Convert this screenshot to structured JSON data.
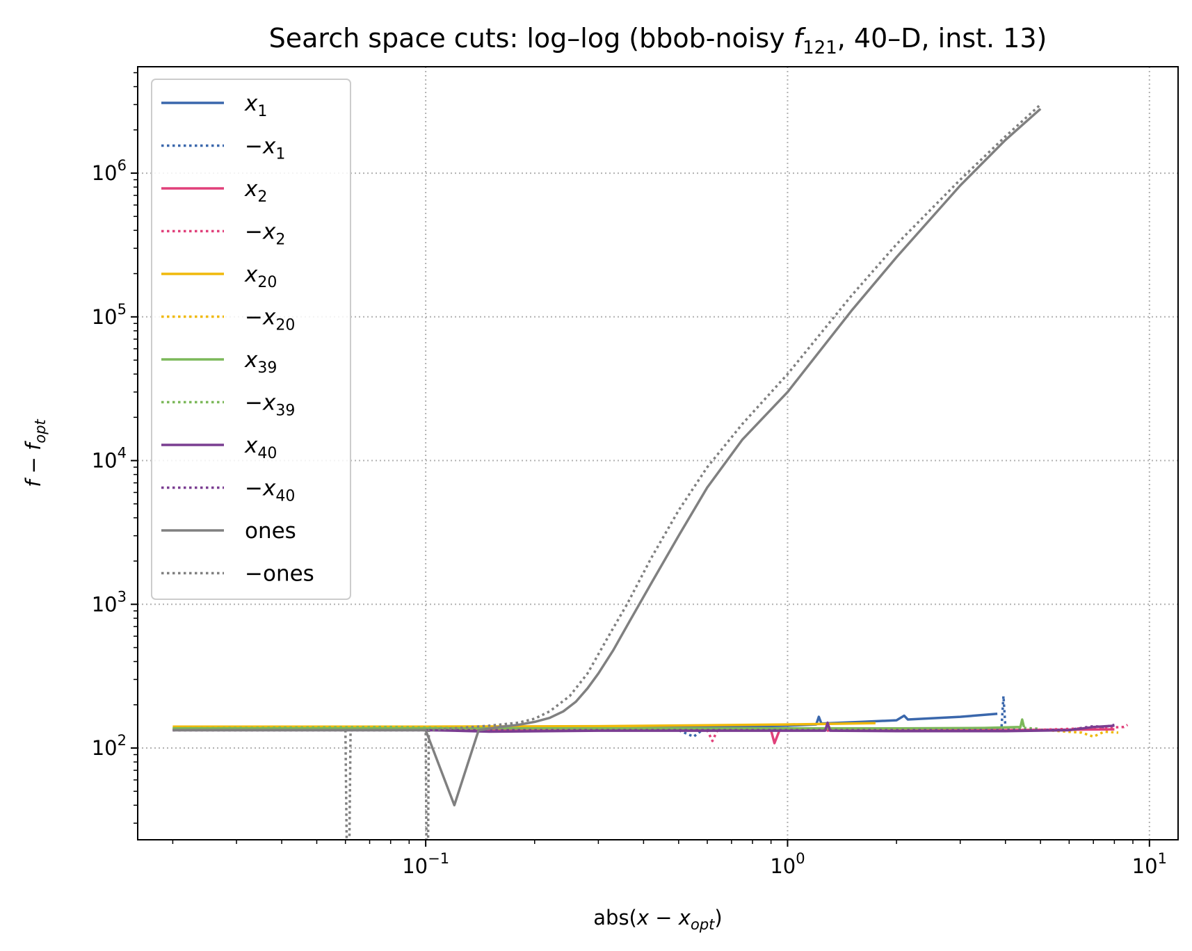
{
  "chart_data": {
    "type": "line",
    "title": {
      "pre": "Search space cuts: log–log (bbob-noisy ",
      "fvar": "f",
      "fsub": "121",
      "post": ", 40–D, inst. 13)"
    },
    "xlabel": {
      "pre": "abs(",
      "var": "x",
      "op": " − ",
      "var2": "x",
      "sub": "opt",
      "post": ")"
    },
    "ylabel": {
      "var": "f",
      "op": " − ",
      "var2": "f",
      "sub": "opt"
    },
    "x_scale": "log",
    "y_scale": "log",
    "xlim": [
      0.016,
      12.0
    ],
    "ylim": [
      23.0,
      5500000.0
    ],
    "x_ticks": [
      {
        "value": 0.1,
        "base": "10",
        "exp": "−1"
      },
      {
        "value": 1,
        "base": "10",
        "exp": "0"
      },
      {
        "value": 10,
        "base": "10",
        "exp": "1"
      }
    ],
    "y_ticks": [
      {
        "value": 100,
        "base": "10",
        "exp": "2"
      },
      {
        "value": 1000,
        "base": "10",
        "exp": "3"
      },
      {
        "value": 10000,
        "base": "10",
        "exp": "4"
      },
      {
        "value": 100000,
        "base": "10",
        "exp": "5"
      },
      {
        "value": 1000000,
        "base": "10",
        "exp": "6"
      }
    ],
    "grid": true,
    "legend_position": "top-left",
    "series": [
      {
        "name": "x",
        "sign": "",
        "sub": "1",
        "color": "#3a67ac",
        "dash": "solid",
        "points": [
          [
            0.02,
            135
          ],
          [
            0.05,
            135
          ],
          [
            0.1,
            135
          ],
          [
            0.3,
            137
          ],
          [
            0.6,
            140
          ],
          [
            1.0,
            143
          ],
          [
            1.2,
            146
          ],
          [
            1.22,
            165
          ],
          [
            1.24,
            148
          ],
          [
            1.6,
            152
          ],
          [
            2.0,
            156
          ],
          [
            2.1,
            168
          ],
          [
            2.15,
            158
          ],
          [
            3.0,
            165
          ],
          [
            3.8,
            173
          ]
        ]
      },
      {
        "name": "x",
        "sign": "−",
        "sub": "1",
        "color": "#3a67ac",
        "dash": "dotted",
        "points": [
          [
            0.02,
            134
          ],
          [
            0.1,
            134
          ],
          [
            0.5,
            133
          ],
          [
            0.55,
            120
          ],
          [
            0.58,
            133
          ],
          [
            1.0,
            134
          ],
          [
            2.0,
            135
          ],
          [
            3.9,
            136
          ],
          [
            3.95,
            230
          ],
          [
            4.0,
            140
          ]
        ]
      },
      {
        "name": "x",
        "sign": "",
        "sub": "2",
        "color": "#e0407a",
        "dash": "solid",
        "points": [
          [
            0.02,
            134
          ],
          [
            0.1,
            134
          ],
          [
            0.5,
            133
          ],
          [
            0.9,
            133
          ],
          [
            0.92,
            108
          ],
          [
            0.95,
            133
          ],
          [
            1.27,
            133
          ],
          [
            1.29,
            145
          ],
          [
            1.32,
            133
          ],
          [
            2.0,
            132
          ],
          [
            4.0,
            133
          ],
          [
            8.0,
            135
          ]
        ]
      },
      {
        "name": "x",
        "sign": "−",
        "sub": "2",
        "color": "#e0407a",
        "dash": "dotted",
        "points": [
          [
            0.02,
            134
          ],
          [
            0.1,
            134
          ],
          [
            0.6,
            133
          ],
          [
            0.62,
            112
          ],
          [
            0.64,
            133
          ],
          [
            2.0,
            132
          ],
          [
            5.0,
            134
          ],
          [
            8.5,
            140
          ],
          [
            8.7,
            145
          ]
        ]
      },
      {
        "name": "x",
        "sign": "",
        "sub": "20",
        "color": "#f0b90b",
        "dash": "solid",
        "points": [
          [
            0.02,
            141
          ],
          [
            0.05,
            141
          ],
          [
            0.1,
            141
          ],
          [
            0.3,
            142
          ],
          [
            0.6,
            144
          ],
          [
            1.0,
            146
          ],
          [
            1.5,
            148
          ],
          [
            1.75,
            149
          ]
        ]
      },
      {
        "name": "x",
        "sign": "−",
        "sub": "20",
        "color": "#f0b90b",
        "dash": "dotted",
        "points": [
          [
            0.02,
            138
          ],
          [
            0.1,
            138
          ],
          [
            0.5,
            137
          ],
          [
            1.0,
            136
          ],
          [
            3.0,
            135
          ],
          [
            5.0,
            134
          ],
          [
            6.5,
            128
          ],
          [
            7.0,
            120
          ],
          [
            7.5,
            130
          ],
          [
            8.2,
            128
          ]
        ]
      },
      {
        "name": "x",
        "sign": "",
        "sub": "39",
        "color": "#7cb85a",
        "dash": "solid",
        "points": [
          [
            0.02,
            137
          ],
          [
            0.1,
            137
          ],
          [
            0.5,
            137
          ],
          [
            1.0,
            137
          ],
          [
            2.0,
            137
          ],
          [
            3.5,
            138
          ],
          [
            4.4,
            140
          ],
          [
            4.45,
            158
          ],
          [
            4.5,
            140
          ]
        ]
      },
      {
        "name": "x",
        "sign": "−",
        "sub": "39",
        "color": "#7cb85a",
        "dash": "dotted",
        "points": [
          [
            0.02,
            137
          ],
          [
            0.08,
            140
          ],
          [
            0.15,
            136
          ],
          [
            0.3,
            136
          ],
          [
            0.45,
            133
          ],
          [
            1.0,
            134
          ],
          [
            2.0,
            136
          ],
          [
            4.5,
            138
          ],
          [
            5.0,
            136
          ]
        ]
      },
      {
        "name": "x",
        "sign": "",
        "sub": "40",
        "color": "#7a3d91",
        "dash": "solid",
        "points": [
          [
            0.02,
            133
          ],
          [
            0.05,
            133
          ],
          [
            0.1,
            133
          ],
          [
            0.12,
            132
          ],
          [
            0.15,
            130
          ],
          [
            0.3,
            132
          ],
          [
            1.0,
            132
          ],
          [
            1.27,
            132
          ],
          [
            1.29,
            150
          ],
          [
            1.31,
            132
          ],
          [
            2.0,
            131
          ],
          [
            4.0,
            131
          ],
          [
            6.0,
            133
          ],
          [
            7.0,
            140
          ],
          [
            8.0,
            143
          ]
        ]
      },
      {
        "name": "x",
        "sign": "−",
        "sub": "40",
        "color": "#7a3d91",
        "dash": "dotted",
        "points": [
          [
            0.02,
            133
          ],
          [
            0.1,
            133
          ],
          [
            0.5,
            133
          ],
          [
            1.0,
            133
          ],
          [
            3.0,
            133
          ],
          [
            6.0,
            134
          ],
          [
            7.0,
            142
          ],
          [
            7.5,
            140
          ],
          [
            8.0,
            145
          ]
        ]
      },
      {
        "name": "ones",
        "sign": "",
        "sub": "",
        "color": "#808080",
        "dash": "solid",
        "points": [
          [
            0.02,
            133
          ],
          [
            0.05,
            133
          ],
          [
            0.1,
            133
          ],
          [
            0.12,
            40
          ],
          [
            0.14,
            133
          ],
          [
            0.16,
            140
          ],
          [
            0.18,
            145
          ],
          [
            0.2,
            152
          ],
          [
            0.22,
            162
          ],
          [
            0.24,
            180
          ],
          [
            0.26,
            210
          ],
          [
            0.28,
            260
          ],
          [
            0.3,
            330
          ],
          [
            0.33,
            480
          ],
          [
            0.37,
            800
          ],
          [
            0.42,
            1400
          ],
          [
            0.5,
            3000
          ],
          [
            0.6,
            6500
          ],
          [
            0.75,
            14000
          ],
          [
            1.0,
            30000
          ],
          [
            1.5,
            110000
          ],
          [
            2.0,
            260000
          ],
          [
            3.0,
            820000
          ],
          [
            4.0,
            1700000
          ],
          [
            5.0,
            2800000
          ]
        ]
      },
      {
        "name": "ones",
        "sign": "−",
        "sub": "",
        "color": "#808080",
        "dash": "dotted",
        "points": [
          [
            0.02,
            133
          ],
          [
            0.06,
            133
          ],
          [
            0.0605,
            20
          ],
          [
            0.0615,
            20
          ],
          [
            0.062,
            133
          ],
          [
            0.1,
            133
          ],
          [
            0.1005,
            20
          ],
          [
            0.1015,
            20
          ],
          [
            0.102,
            133
          ],
          [
            0.15,
            143
          ],
          [
            0.18,
            150
          ],
          [
            0.2,
            160
          ],
          [
            0.22,
            180
          ],
          [
            0.25,
            230
          ],
          [
            0.28,
            330
          ],
          [
            0.32,
            600
          ],
          [
            0.36,
            1000
          ],
          [
            0.42,
            2100
          ],
          [
            0.5,
            4500
          ],
          [
            0.6,
            9000
          ],
          [
            0.75,
            18000
          ],
          [
            1.0,
            40000
          ],
          [
            1.5,
            140000
          ],
          [
            2.0,
            320000
          ],
          [
            3.0,
            900000
          ],
          [
            4.0,
            1800000
          ],
          [
            5.0,
            3000000
          ]
        ]
      }
    ]
  }
}
